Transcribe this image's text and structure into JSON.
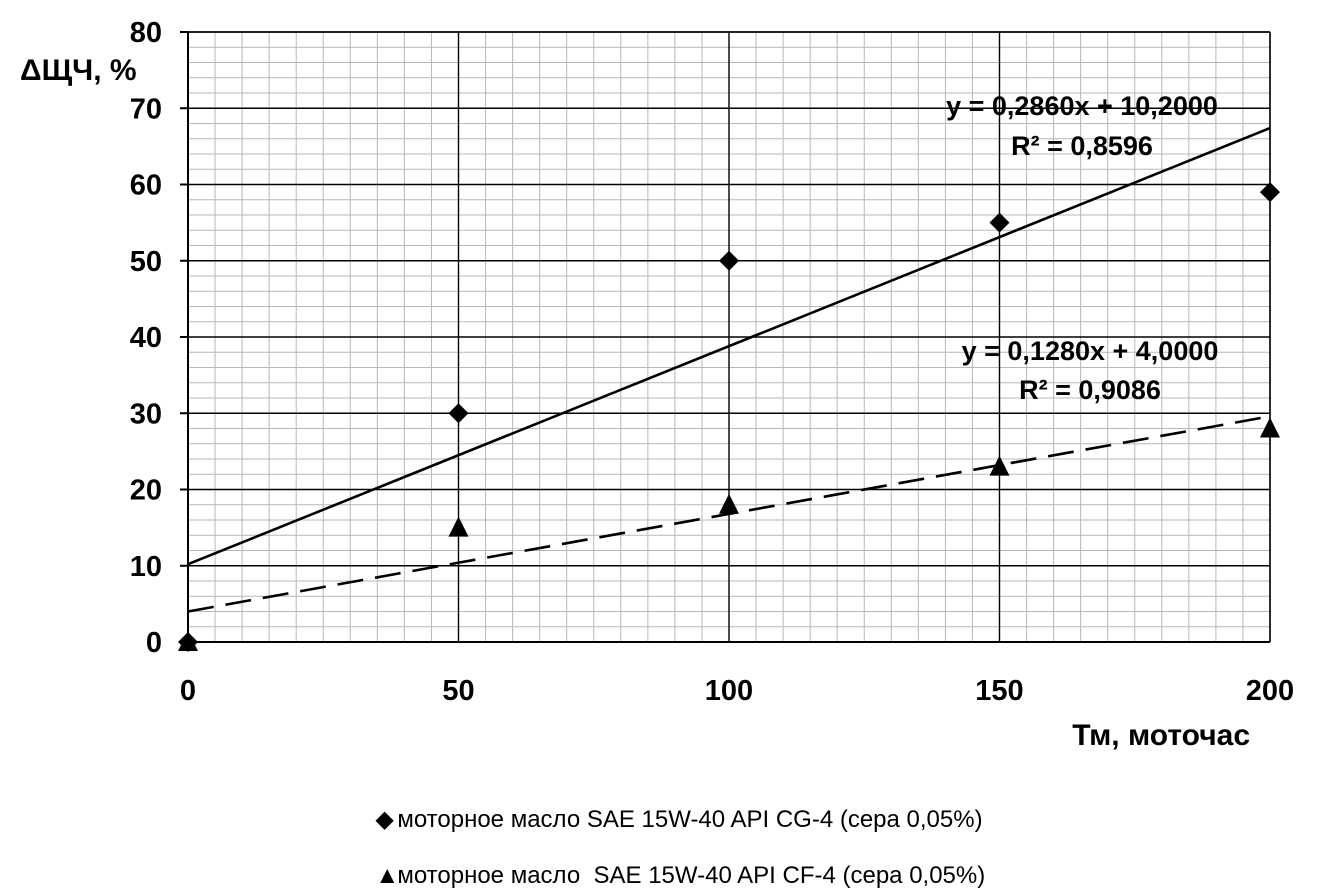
{
  "chart_data": {
    "type": "scatter",
    "ylabel": "ΔЩЧ, %",
    "xlabel": "Тм, моточас",
    "xlim": [
      0,
      200
    ],
    "ylim": [
      0,
      80
    ],
    "x_ticks": [
      0,
      50,
      100,
      150,
      200
    ],
    "y_ticks": [
      0,
      10,
      20,
      30,
      40,
      50,
      60,
      70,
      80
    ],
    "grid": true,
    "series": [
      {
        "name": "моторное масло SAE 15W-40 API CG-4 (сера 0,05%)",
        "marker": "diamond",
        "x": [
          0,
          50,
          100,
          150,
          200
        ],
        "y": [
          0,
          30,
          50,
          55,
          59
        ],
        "trendline": {
          "slope": 0.286,
          "intercept": 10.2,
          "style": "solid",
          "equation": "y = 0,2860x + 10,2000",
          "r2": "R² = 0,8596"
        }
      },
      {
        "name": "моторное масло  SAE 15W-40 API CF-4 (сера 0,05%)",
        "marker": "triangle",
        "x": [
          0,
          50,
          100,
          150,
          200
        ],
        "y": [
          0,
          15,
          18,
          23,
          28
        ],
        "trendline": {
          "slope": 0.128,
          "intercept": 4.0,
          "style": "dashed",
          "equation": "y = 0,1280x + 4,0000",
          "r2": "R² = 0,9086"
        }
      }
    ],
    "legend_position": "bottom"
  },
  "colors": {
    "major_grid": "#000000",
    "minor_grid": "#b8b8b8",
    "marker": "#000000"
  }
}
